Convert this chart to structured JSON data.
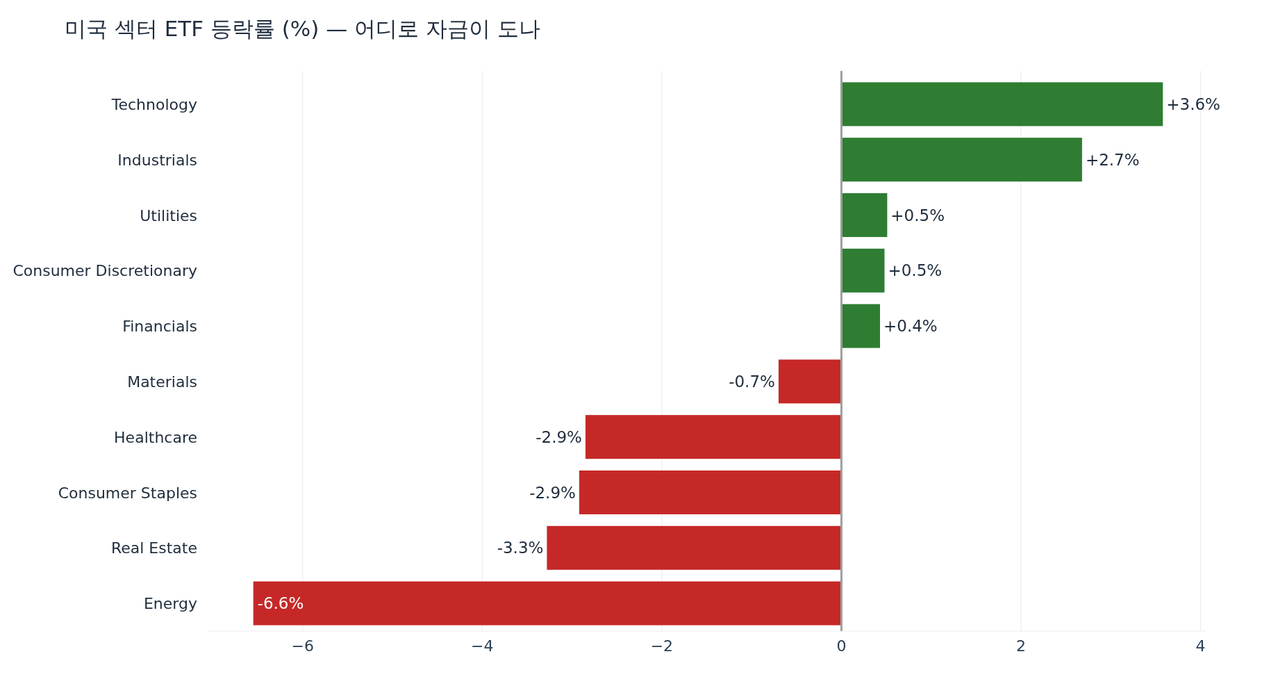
{
  "chart_data": {
    "type": "bar",
    "orientation": "horizontal",
    "title": "미국 섹터 ETF 등락률 (%) — 어디로 자금이 도나",
    "categories": [
      "Technology",
      "Industrials",
      "Utilities",
      "Consumer Discretionary",
      "Financials",
      "Materials",
      "Healthcare",
      "Consumer Staples",
      "Real Estate",
      "Energy"
    ],
    "values": [
      3.58,
      2.68,
      0.51,
      0.48,
      0.43,
      -0.7,
      -2.85,
      -2.92,
      -3.28,
      -6.55
    ],
    "value_labels": [
      "+3.6%",
      "+2.7%",
      "+0.5%",
      "+0.5%",
      "+0.4%",
      "-0.7%",
      "-2.9%",
      "-2.9%",
      "-3.3%",
      "-6.6%"
    ],
    "colors": [
      "#2e7d32",
      "#2e7d32",
      "#2e7d32",
      "#2e7d32",
      "#2e7d32",
      "#c62828",
      "#c62828",
      "#c62828",
      "#c62828",
      "#c62828"
    ],
    "xlim": [
      -7.05,
      4.05
    ],
    "xticks": [
      {
        "value": -6,
        "label": "−6"
      },
      {
        "value": -4,
        "label": "−4"
      },
      {
        "value": -2,
        "label": "−2"
      },
      0,
      2,
      4
    ],
    "grid": "x",
    "ref_lines": [
      {
        "axis": "x",
        "value": 0,
        "color": "#9e9e9e"
      }
    ]
  }
}
